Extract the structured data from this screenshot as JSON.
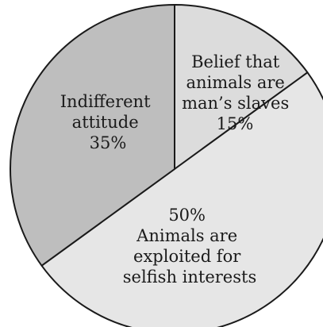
{
  "chart_data": {
    "type": "pie",
    "title": "",
    "slices": [
      {
        "label_lines": [
          "Belief that",
          "animals are",
          "man’s slaves"
        ],
        "value_label": "15%",
        "value": 15,
        "color": "#dcdcdc"
      },
      {
        "label_lines": [
          "Animals are",
          "exploited for",
          "selfish interests"
        ],
        "value_label": "50%",
        "value": 50,
        "color": "#e6e6e6"
      },
      {
        "label_lines": [
          "Indifferent",
          "attitude"
        ],
        "value_label": "35%",
        "value": 35,
        "color": "#bebebe"
      }
    ]
  }
}
